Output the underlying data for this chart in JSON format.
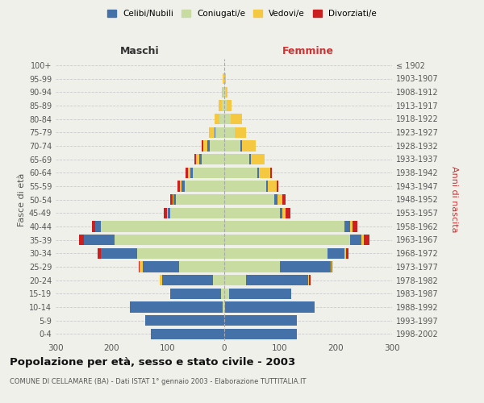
{
  "age_groups": [
    "0-4",
    "5-9",
    "10-14",
    "15-19",
    "20-24",
    "25-29",
    "30-34",
    "35-39",
    "40-44",
    "45-49",
    "50-54",
    "55-59",
    "60-64",
    "65-69",
    "70-74",
    "75-79",
    "80-84",
    "85-89",
    "90-94",
    "95-99",
    "100+"
  ],
  "birth_years": [
    "1998-2002",
    "1993-1997",
    "1988-1992",
    "1983-1987",
    "1978-1982",
    "1973-1977",
    "1968-1972",
    "1963-1967",
    "1958-1962",
    "1953-1957",
    "1948-1952",
    "1943-1947",
    "1938-1942",
    "1933-1937",
    "1928-1932",
    "1923-1927",
    "1918-1922",
    "1913-1917",
    "1908-1912",
    "1903-1907",
    "≤ 1902"
  ],
  "male_celibe": [
    130,
    140,
    165,
    90,
    90,
    65,
    65,
    55,
    10,
    5,
    5,
    5,
    4,
    4,
    4,
    2,
    0,
    0,
    0,
    0,
    0
  ],
  "male_coniugato": [
    0,
    0,
    2,
    5,
    20,
    80,
    155,
    195,
    220,
    95,
    85,
    70,
    55,
    40,
    25,
    15,
    8,
    4,
    2,
    1,
    0
  ],
  "male_vedovo": [
    0,
    0,
    0,
    0,
    5,
    5,
    0,
    0,
    0,
    2,
    2,
    3,
    5,
    5,
    8,
    10,
    8,
    5,
    2,
    1,
    0
  ],
  "male_divorziato": [
    0,
    0,
    0,
    0,
    0,
    2,
    5,
    8,
    5,
    5,
    4,
    5,
    4,
    4,
    2,
    0,
    0,
    0,
    0,
    0,
    0
  ],
  "female_celibe": [
    130,
    130,
    160,
    110,
    110,
    90,
    30,
    20,
    10,
    5,
    5,
    4,
    3,
    3,
    2,
    0,
    0,
    0,
    0,
    0,
    0
  ],
  "female_coniugato": [
    0,
    0,
    2,
    10,
    40,
    100,
    185,
    225,
    215,
    100,
    90,
    75,
    60,
    45,
    30,
    20,
    12,
    5,
    3,
    1,
    0
  ],
  "female_vedovo": [
    0,
    0,
    0,
    0,
    2,
    2,
    3,
    5,
    5,
    5,
    10,
    15,
    20,
    25,
    25,
    20,
    20,
    8,
    4,
    2,
    1
  ],
  "female_divorziata": [
    0,
    0,
    0,
    0,
    2,
    2,
    5,
    10,
    8,
    8,
    5,
    3,
    2,
    0,
    0,
    0,
    0,
    0,
    0,
    0,
    0
  ],
  "color_celibe": "#4472a8",
  "color_coniugato": "#c8dba0",
  "color_vedovo": "#f5c842",
  "color_divorziato": "#cc2020",
  "title": "Popolazione per età, sesso e stato civile - 2003",
  "subtitle": "COMUNE DI CELLAMARE (BA) - Dati ISTAT 1° gennaio 2003 - Elaborazione TUTTITALIA.IT",
  "xlabel_left": "Maschi",
  "xlabel_right": "Femmine",
  "ylabel_left": "Fasce di età",
  "ylabel_right": "Anni di nascita",
  "xlim": 300,
  "bg_color": "#f0f0eb",
  "grid_color": "#cccccc"
}
